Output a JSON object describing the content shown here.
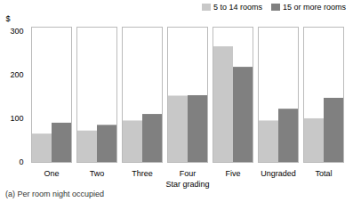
{
  "chart_data": {
    "type": "bar",
    "categories": [
      "One",
      "Two",
      "Three",
      "Four",
      "Five",
      "Ungraded",
      "Total"
    ],
    "series": [
      {
        "name": "5 to 14 rooms",
        "color": "#c8c8c8",
        "values": [
          65,
          72,
          95,
          152,
          265,
          95,
          100
        ]
      },
      {
        "name": "15 or more rooms",
        "color": "#808080",
        "values": [
          90,
          85,
          110,
          153,
          218,
          122,
          147
        ]
      }
    ],
    "xlabel": "Star grading",
    "ylabel": "$",
    "caption": "(a) Per room night occupied",
    "ylim": [
      0,
      310
    ],
    "yticks": [
      0,
      100,
      200,
      300
    ],
    "grid": false,
    "legend": "upper right"
  }
}
